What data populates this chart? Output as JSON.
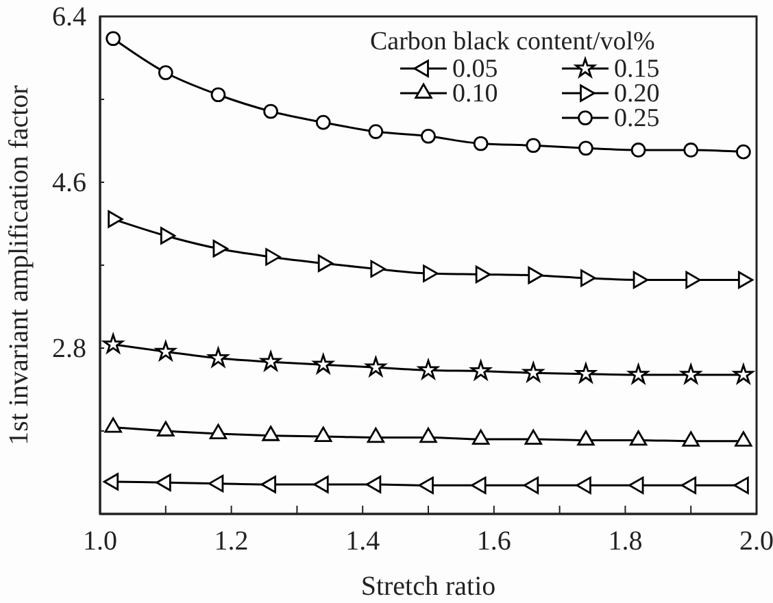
{
  "chart_data": {
    "type": "line",
    "xlabel": "Stretch ratio",
    "ylabel": "1st invariant amplification factor",
    "legend_title": "Carbon black content/vol%",
    "legend": "top right",
    "line_style": "solid",
    "x": [
      1.02,
      1.1,
      1.18,
      1.26,
      1.34,
      1.42,
      1.5,
      1.58,
      1.66,
      1.74,
      1.82,
      1.9,
      1.98
    ],
    "xlim": [
      1.0,
      2.0
    ],
    "ylim": [
      1.0,
      6.4
    ],
    "xticks": [
      {
        "value": 1.0,
        "label": "1.0"
      },
      {
        "value": 1.1,
        "label": null
      },
      1.2,
      {
        "value": 1.3,
        "label": null
      },
      1.4,
      {
        "value": 1.5,
        "label": null
      },
      1.6,
      {
        "value": 1.7,
        "label": null
      },
      1.8,
      {
        "value": 1.9,
        "label": null
      },
      {
        "value": 2.0,
        "label": "2.0"
      }
    ],
    "yticks": [
      {
        "value": 1.0,
        "label": null
      },
      {
        "value": 1.9,
        "label": null
      },
      2.8,
      {
        "value": 3.7,
        "label": null
      },
      4.6,
      {
        "value": 5.5,
        "label": null
      },
      6.4
    ],
    "series": [
      {
        "name": "0.05",
        "color": "#000000",
        "marker": "triangle-left",
        "values": [
          1.35,
          1.34,
          1.33,
          1.32,
          1.32,
          1.32,
          1.31,
          1.31,
          1.31,
          1.31,
          1.31,
          1.31,
          1.31
        ]
      },
      {
        "name": "0.10",
        "color": "#000000",
        "marker": "triangle",
        "values": [
          1.94,
          1.9,
          1.87,
          1.85,
          1.84,
          1.83,
          1.83,
          1.81,
          1.81,
          1.8,
          1.8,
          1.79,
          1.79
        ]
      },
      {
        "name": "0.15",
        "color": "#000000",
        "marker": "star",
        "values": [
          2.84,
          2.76,
          2.69,
          2.65,
          2.62,
          2.59,
          2.56,
          2.55,
          2.53,
          2.52,
          2.51,
          2.51,
          2.51
        ]
      },
      {
        "name": "0.20",
        "color": "#000000",
        "marker": "triangle-right",
        "values": [
          4.2,
          4.02,
          3.88,
          3.79,
          3.72,
          3.66,
          3.61,
          3.6,
          3.59,
          3.56,
          3.54,
          3.54,
          3.54
        ]
      },
      {
        "name": "0.25",
        "color": "#000000",
        "marker": "circle",
        "values": [
          6.16,
          5.79,
          5.55,
          5.37,
          5.25,
          5.15,
          5.1,
          5.02,
          5.0,
          4.97,
          4.95,
          4.95,
          4.93
        ]
      }
    ]
  }
}
